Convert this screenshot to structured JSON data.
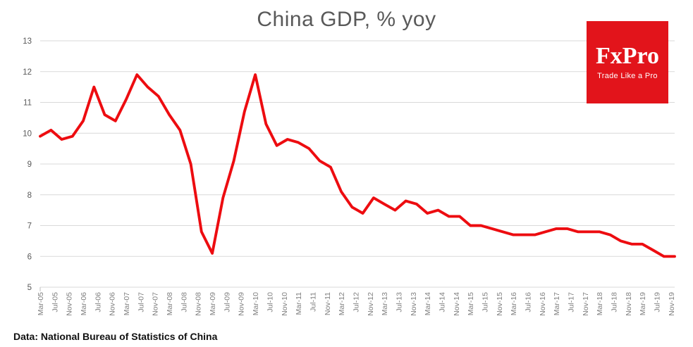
{
  "chart": {
    "title": "China GDP, % yoy",
    "source_note": "Data: National Bureau of Statistics of China"
  },
  "logo": {
    "brand": "FxPro",
    "tagline": "Trade Like a Pro",
    "background_color": "#E2141B",
    "text_color": "#FFFFFF"
  },
  "chart_data": {
    "type": "line",
    "title": "China GDP, % yoy",
    "xlabel": "",
    "ylabel": "",
    "ylim": [
      5,
      13
    ],
    "grid": true,
    "legend": false,
    "series_color": "#ED0C10",
    "gridline_color": "#D9D9D9",
    "title_color": "#595959",
    "y_tick_color": "#595959",
    "x_tick_color": "#7F7F7F",
    "y_ticks": [
      5,
      6,
      7,
      8,
      9,
      10,
      11,
      12,
      13
    ],
    "x_tick_labels": [
      "Mar-05",
      "Jul-05",
      "Nov-05",
      "Mar-06",
      "Jul-06",
      "Nov-06",
      "Mar-07",
      "Jul-07",
      "Nov-07",
      "Mar-08",
      "Jul-08",
      "Nov-08",
      "Mar-09",
      "Jul-09",
      "Nov-09",
      "Mar-10",
      "Jul-10",
      "Nov-10",
      "Mar-11",
      "Jul-11",
      "Nov-11",
      "Mar-12",
      "Jul-12",
      "Nov-12",
      "Mar-13",
      "Jul-13",
      "Nov-13",
      "Mar-14",
      "Jul-14",
      "Nov-14",
      "Mar-15",
      "Jul-15",
      "Nov-15",
      "Mar-16",
      "Jul-16",
      "Nov-16",
      "Mar-17",
      "Jul-17",
      "Nov-17",
      "Mar-18",
      "Jul-18",
      "Nov-18",
      "Mar-19",
      "Jul-19",
      "Nov-19"
    ],
    "categories": [
      "Mar-05",
      "Jun-05",
      "Sep-05",
      "Dec-05",
      "Mar-06",
      "Jun-06",
      "Sep-06",
      "Dec-06",
      "Mar-07",
      "Jun-07",
      "Sep-07",
      "Dec-07",
      "Mar-08",
      "Jun-08",
      "Sep-08",
      "Dec-08",
      "Mar-09",
      "Jun-09",
      "Sep-09",
      "Dec-09",
      "Mar-10",
      "Jun-10",
      "Sep-10",
      "Dec-10",
      "Mar-11",
      "Jun-11",
      "Sep-11",
      "Dec-11",
      "Mar-12",
      "Jun-12",
      "Sep-12",
      "Dec-12",
      "Mar-13",
      "Jun-13",
      "Sep-13",
      "Dec-13",
      "Mar-14",
      "Jun-14",
      "Sep-14",
      "Dec-14",
      "Mar-15",
      "Jun-15",
      "Sep-15",
      "Dec-15",
      "Mar-16",
      "Jun-16",
      "Sep-16",
      "Dec-16",
      "Mar-17",
      "Jun-17",
      "Sep-17",
      "Dec-17",
      "Mar-18",
      "Jun-18",
      "Sep-18",
      "Dec-18",
      "Mar-19",
      "Jun-19",
      "Sep-19",
      "Dec-19"
    ],
    "values": [
      9.9,
      10.1,
      9.8,
      9.9,
      10.4,
      11.5,
      10.6,
      10.4,
      11.1,
      11.9,
      11.5,
      11.2,
      10.6,
      10.1,
      9.0,
      6.8,
      6.1,
      7.9,
      9.1,
      10.7,
      11.9,
      10.3,
      9.6,
      9.8,
      9.7,
      9.5,
      9.1,
      8.9,
      8.1,
      7.6,
      7.4,
      7.9,
      7.7,
      7.5,
      7.8,
      7.7,
      7.4,
      7.5,
      7.3,
      7.3,
      7.0,
      7.0,
      6.9,
      6.8,
      6.7,
      6.7,
      6.7,
      6.8,
      6.9,
      6.9,
      6.8,
      6.8,
      6.8,
      6.7,
      6.5,
      6.4,
      6.4,
      6.2,
      6.0,
      6.0
    ]
  }
}
